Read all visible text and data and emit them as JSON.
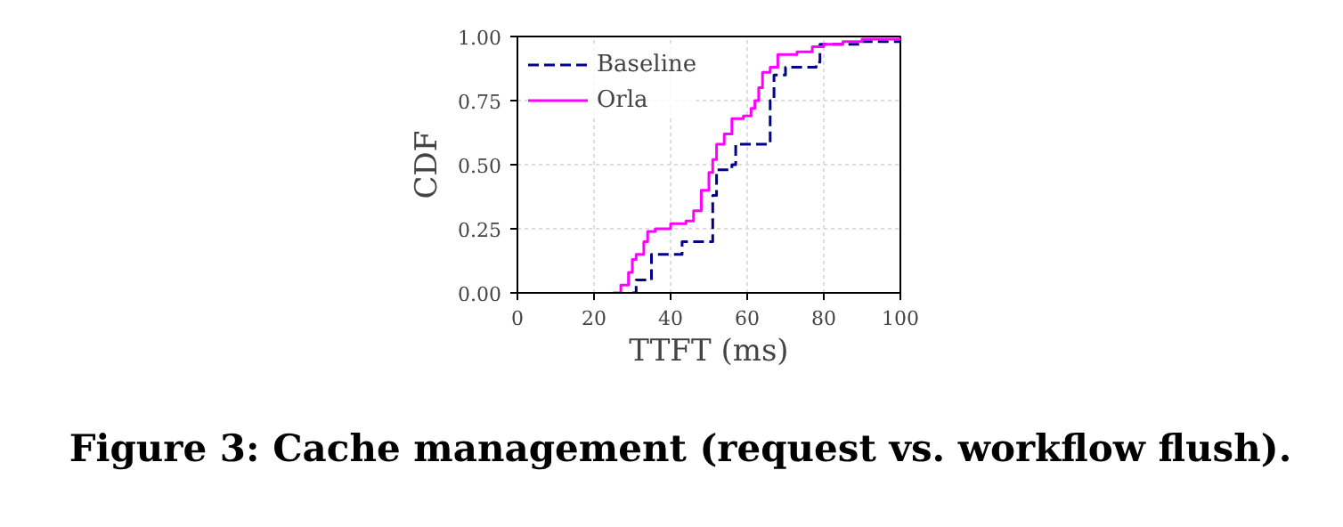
{
  "chart_data": {
    "type": "step",
    "title": "Figure 3: Cache management (request vs. workflow flush).",
    "xlabel": "TTFT (ms)",
    "ylabel": "CDF",
    "xlim": [
      0,
      100
    ],
    "ylim": [
      0,
      1.0
    ],
    "xticks": [
      0,
      20,
      40,
      60,
      80,
      100
    ],
    "yticks": [
      {
        "value": 0,
        "label": "0.00"
      },
      {
        "value": 0.25,
        "label": "0.25"
      },
      {
        "value": 0.5,
        "label": "0.50"
      },
      {
        "value": 0.75,
        "label": "0.75"
      },
      {
        "value": 1.0,
        "label": "1.00"
      }
    ],
    "grid": true,
    "legend": "top left",
    "series": [
      {
        "name": "Baseline",
        "color": "#00008b",
        "line_style": "dashed",
        "x": [
          30,
          31,
          35,
          43,
          50,
          51,
          52,
          56,
          57,
          65,
          66,
          67,
          70,
          78,
          79,
          90,
          100
        ],
        "values": [
          0,
          0.05,
          0.15,
          0.2,
          0.2,
          0.38,
          0.48,
          0.5,
          0.58,
          0.58,
          0.75,
          0.85,
          0.88,
          0.9,
          0.97,
          0.98,
          0.99
        ]
      },
      {
        "name": "Orla",
        "color": "#ff00ff",
        "line_style": "solid",
        "x": [
          25,
          27,
          29,
          30,
          31,
          33,
          34,
          36,
          40,
          44,
          46,
          48,
          50,
          51,
          52,
          54,
          56,
          59,
          61,
          62,
          63,
          64,
          66,
          68,
          73,
          77,
          80,
          85,
          90,
          100
        ],
        "values": [
          0,
          0.03,
          0.08,
          0.13,
          0.15,
          0.2,
          0.24,
          0.25,
          0.27,
          0.28,
          0.32,
          0.4,
          0.47,
          0.52,
          0.58,
          0.62,
          0.68,
          0.69,
          0.72,
          0.75,
          0.8,
          0.86,
          0.88,
          0.93,
          0.94,
          0.96,
          0.97,
          0.98,
          0.99,
          0.99
        ]
      }
    ]
  }
}
